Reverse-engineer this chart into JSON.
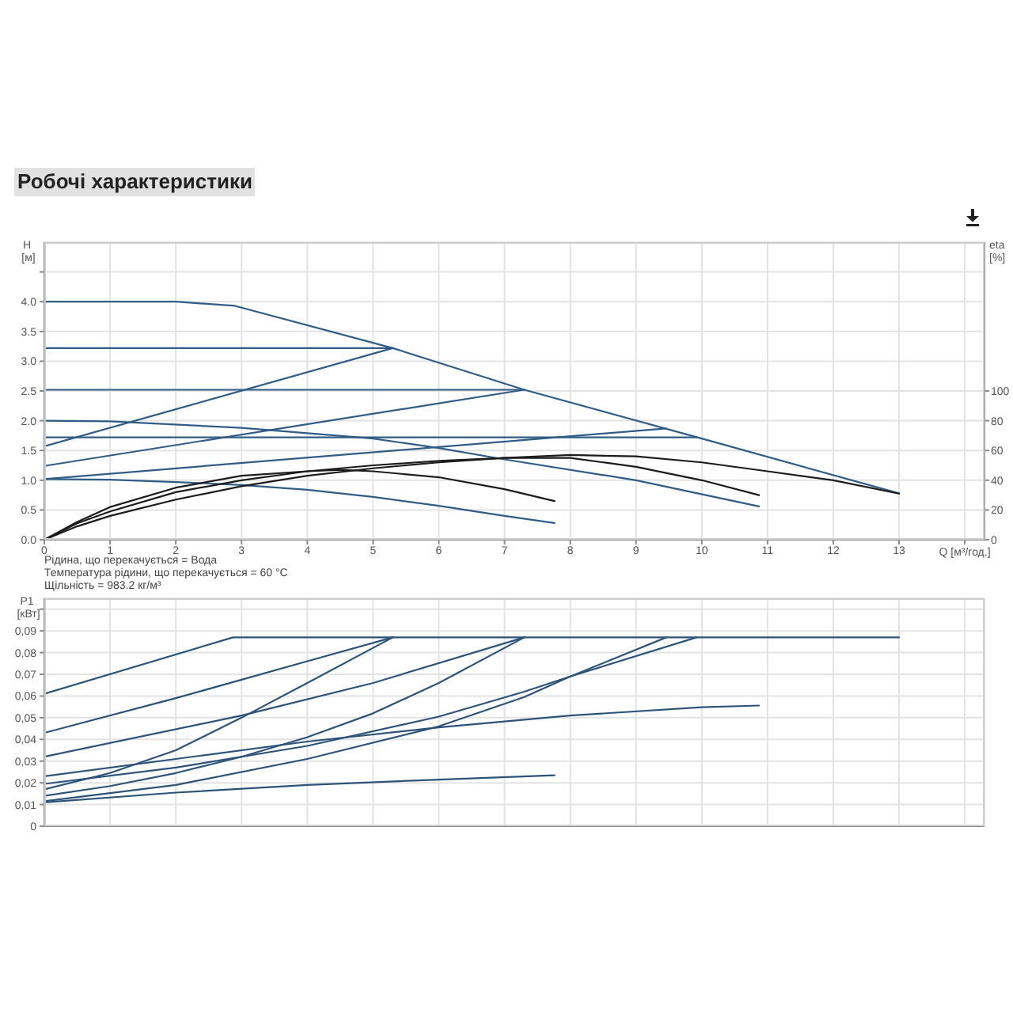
{
  "chart_data": [
    {
      "type": "line",
      "title": "Робочі характеристики",
      "xlabel": "Q [м³/год.]",
      "ylabel": "H [м]",
      "y2label": "eta [%]",
      "annotations": [
        "Рідина, що перекачується = Вода",
        "Температура рідини, що перекачується = 60 °C",
        "Щільність = 983.2 кг/м³"
      ],
      "xlim": [
        0,
        14.3
      ],
      "xticks": [
        0,
        1,
        2,
        3,
        4,
        5,
        6,
        7,
        8,
        9,
        10,
        11,
        12,
        13,
        {
          "value": 14,
          "label": null
        }
      ],
      "ylim": [
        0,
        5
      ],
      "yticks": [
        {
          "value": 0,
          "label": "0.0"
        },
        0.5,
        {
          "value": 1,
          "label": "1.0"
        },
        1.5,
        {
          "value": 2,
          "label": "2.0"
        },
        2.5,
        {
          "value": 3,
          "label": "3.0"
        },
        3.5,
        {
          "value": 4,
          "label": "4.0"
        },
        {
          "value": 4.5,
          "label": null
        }
      ],
      "y2lim": [
        0,
        200
      ],
      "y2ticks": [
        0,
        20,
        40,
        60,
        80,
        100
      ],
      "grid": true,
      "series": [
        {
          "color": "#2f5d87",
          "x": [
            0,
            2,
            2.9,
            5.3,
            7.3,
            10,
            13
          ],
          "values": [
            4.0,
            4.0,
            3.93,
            3.22,
            2.52,
            1.7,
            0.78
          ]
        },
        {
          "color": "#2f5d87",
          "x": [
            0,
            5.3
          ],
          "values": [
            3.22,
            3.22
          ]
        },
        {
          "color": "#2f5d87",
          "x": [
            0,
            5.3
          ],
          "values": [
            1.57,
            3.22
          ]
        },
        {
          "color": "#2f5d87",
          "x": [
            0,
            7.3
          ],
          "values": [
            2.52,
            2.52
          ]
        },
        {
          "color": "#2f5d87",
          "x": [
            0,
            7.3
          ],
          "values": [
            1.24,
            2.52
          ]
        },
        {
          "color": "#2f5d87",
          "x": [
            0,
            9.92
          ],
          "values": [
            1.72,
            1.72
          ]
        },
        {
          "color": "#2f5d87",
          "x": [
            0,
            9.46
          ],
          "values": [
            1.02,
            1.87
          ]
        },
        {
          "color": "#2f5d87",
          "x": [
            0,
            1,
            3,
            5,
            6,
            7,
            9,
            10.87
          ],
          "values": [
            2.0,
            1.99,
            1.88,
            1.7,
            1.54,
            1.35,
            1.0,
            0.56
          ]
        },
        {
          "color": "#2f5d87",
          "x": [
            0,
            1,
            2,
            3,
            4,
            5,
            6,
            7,
            7.76
          ],
          "values": [
            1.02,
            1.01,
            0.97,
            0.92,
            0.84,
            0.72,
            0.57,
            0.4,
            0.28
          ]
        },
        {
          "color": "#1c1c1c",
          "axis": "y2",
          "x": [
            0,
            0.5,
            1,
            2,
            3,
            4,
            5,
            6,
            7,
            8,
            9,
            10,
            11,
            12,
            13
          ],
          "values": [
            0,
            9,
            16,
            27,
            36,
            43,
            48,
            52,
            55,
            57,
            56,
            52,
            46,
            40,
            31
          ]
        },
        {
          "color": "#1c1c1c",
          "axis": "y2",
          "x": [
            0,
            0.5,
            1,
            2,
            3,
            4,
            5,
            6,
            7,
            8,
            9,
            10,
            10.87
          ],
          "values": [
            0,
            11,
            19,
            32,
            40,
            46,
            50,
            53,
            55,
            55,
            49,
            40,
            30
          ]
        },
        {
          "color": "#1c1c1c",
          "axis": "y2",
          "x": [
            0,
            0.5,
            1,
            2,
            3,
            4,
            4.5,
            5,
            6,
            7,
            7.76
          ],
          "values": [
            0,
            12,
            22,
            35,
            43,
            46,
            47,
            46,
            42,
            34,
            26
          ]
        }
      ]
    },
    {
      "type": "line",
      "ylabel": "P1 [кВт]",
      "xlim": [
        0,
        14.3
      ],
      "xticks": [
        0,
        1,
        2,
        3,
        4,
        5,
        6,
        7,
        8,
        9,
        10,
        11,
        12,
        13,
        14
      ],
      "ylim": [
        0,
        0.105
      ],
      "yticks": [
        0,
        {
          "value": 0.01,
          "label": "0,01"
        },
        {
          "value": 0.02,
          "label": "0,02"
        },
        {
          "value": 0.03,
          "label": "0,03"
        },
        {
          "value": 0.04,
          "label": "0,04"
        },
        {
          "value": 0.05,
          "label": "0,05"
        },
        {
          "value": 0.06,
          "label": "0,06"
        },
        {
          "value": 0.07,
          "label": "0,07"
        },
        {
          "value": 0.08,
          "label": "0,08"
        },
        {
          "value": 0.09,
          "label": "0,09"
        },
        {
          "value": 0.1,
          "label": null
        }
      ],
      "tick_labels": "y",
      "grid": true,
      "series": [
        {
          "color": "#2c5379",
          "x": [
            0,
            2.87,
            13
          ],
          "values": [
            0.061,
            0.087,
            0.087
          ]
        },
        {
          "color": "#2c5379",
          "x": [
            0,
            2,
            4,
            5.3
          ],
          "values": [
            0.043,
            0.059,
            0.076,
            0.087
          ]
        },
        {
          "color": "#2c5379",
          "x": [
            0,
            3,
            5,
            7.3
          ],
          "values": [
            0.032,
            0.051,
            0.066,
            0.087
          ]
        },
        {
          "color": "#2c5379",
          "x": [
            0,
            1,
            2,
            3,
            4,
            5.3
          ],
          "values": [
            0.017,
            0.0245,
            0.035,
            0.05,
            0.066,
            0.087
          ]
        },
        {
          "color": "#2c5379",
          "x": [
            0,
            1,
            2,
            3,
            4,
            5,
            6,
            7.3
          ],
          "values": [
            0.014,
            0.0185,
            0.0245,
            0.032,
            0.041,
            0.052,
            0.066,
            0.087
          ]
        },
        {
          "color": "#2c5379",
          "x": [
            0,
            2,
            4,
            6,
            7.3,
            8,
            9.92
          ],
          "values": [
            0.0195,
            0.027,
            0.037,
            0.0505,
            0.062,
            0.069,
            0.087
          ]
        },
        {
          "color": "#2c5379",
          "x": [
            0,
            2,
            4,
            6,
            7.3,
            8,
            9.46
          ],
          "values": [
            0.0115,
            0.019,
            0.031,
            0.046,
            0.0595,
            0.069,
            0.087
          ]
        },
        {
          "color": "#2c5379",
          "x": [
            0,
            2,
            4,
            6,
            8,
            10,
            10.87
          ],
          "values": [
            0.023,
            0.031,
            0.039,
            0.0455,
            0.051,
            0.0548,
            0.0556
          ]
        },
        {
          "color": "#2c5379",
          "x": [
            0,
            2,
            4,
            6,
            7.76
          ],
          "values": [
            0.011,
            0.0155,
            0.019,
            0.0215,
            0.0235
          ]
        }
      ]
    }
  ]
}
